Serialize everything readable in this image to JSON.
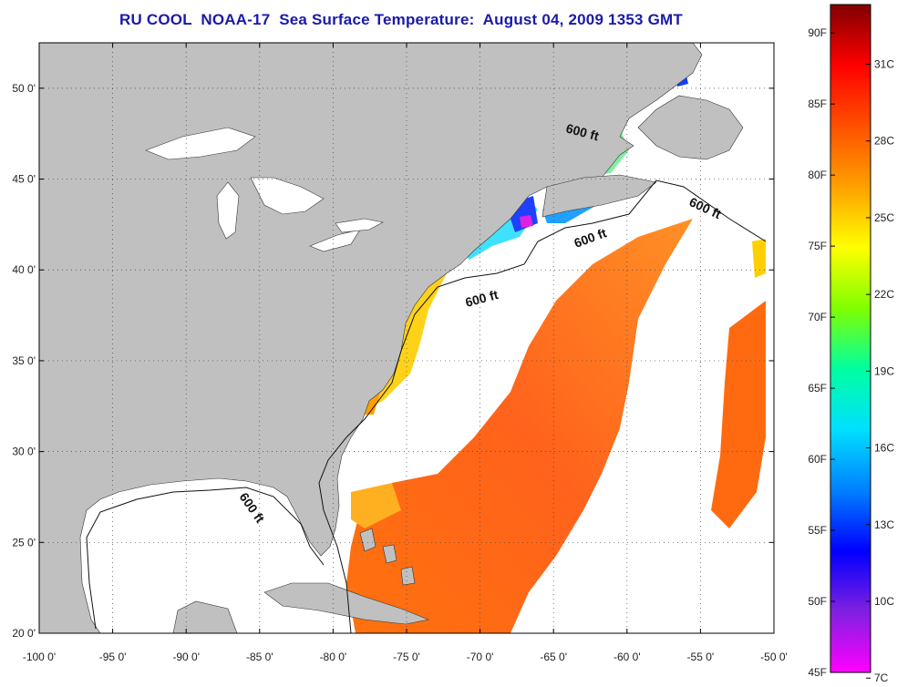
{
  "title": "RU COOL  NOAA-17  Sea Surface Temperature:  August 04, 2009 1353 GMT",
  "map": {
    "lat_ticks": [
      "50 0'",
      "45 0'",
      "40 0'",
      "35 0'",
      "30 0'",
      "25 0'",
      "20 0'"
    ],
    "lon_ticks": [
      "-100 0'",
      "-95 0'",
      "-90 0'",
      "-85 0'",
      "-80 0'",
      "-75 0'",
      "-70 0'",
      "-65 0'",
      "-60 0'",
      "-55 0'",
      "-50 0'"
    ],
    "lon_range": [
      -100,
      -50
    ],
    "lat_range": [
      20,
      52.5
    ],
    "contour_label": "600 ft",
    "land_color": "#c0c0c0",
    "ocean_color": "#ffffff",
    "grid": true
  },
  "colorbar": {
    "f_labels": [
      "90F",
      "85F",
      "80F",
      "75F",
      "70F",
      "65F",
      "60F",
      "55F",
      "50F",
      "45F"
    ],
    "c_labels": [
      "31C",
      "28C",
      "25C",
      "22C",
      "19C",
      "16C",
      "13C",
      "10C",
      "7C"
    ],
    "range_f": [
      45,
      92
    ],
    "stops": [
      "#ff00ff",
      "#8020e0",
      "#0000ff",
      "#0080ff",
      "#00e0ff",
      "#00ffa0",
      "#80ff00",
      "#ffff00",
      "#ffa000",
      "#ff5000",
      "#ff0000",
      "#800000"
    ]
  }
}
